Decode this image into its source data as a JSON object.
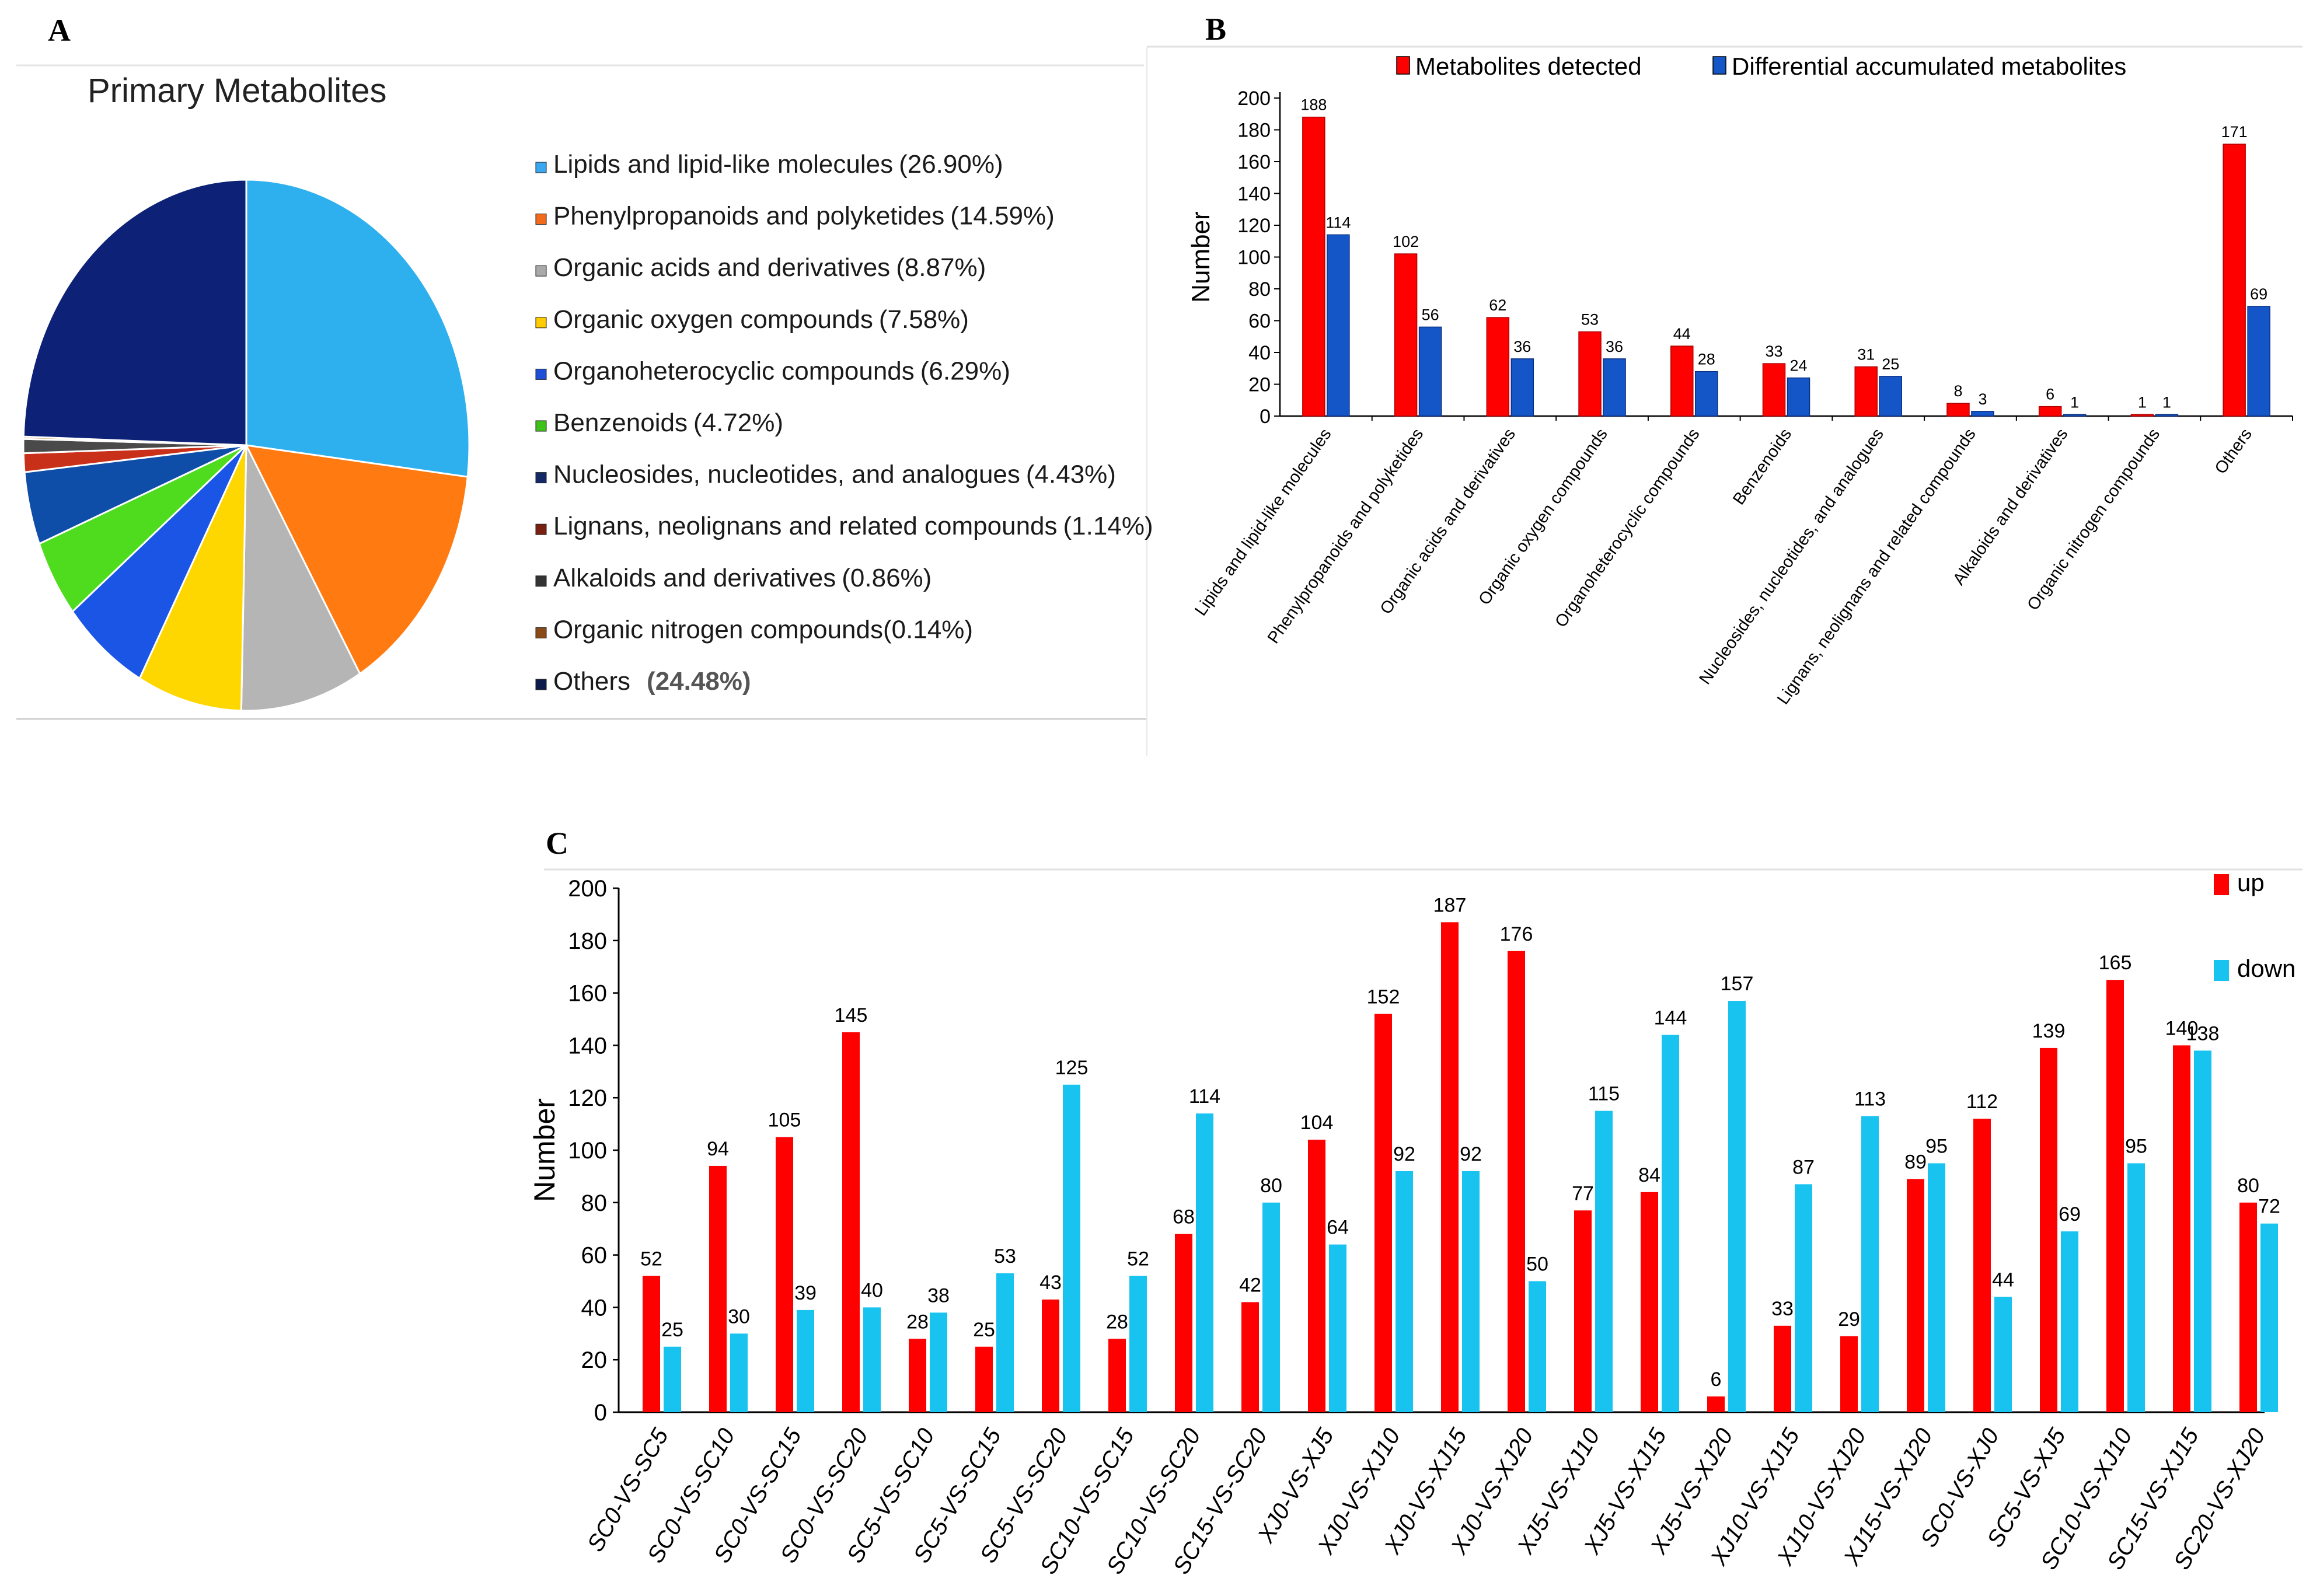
{
  "panels": {
    "a": {
      "letter": "A"
    },
    "b": {
      "letter": "B"
    },
    "c": {
      "letter": "C"
    }
  },
  "colors": {
    "red": "#ff0000",
    "blue_b": "#1456c8",
    "cyan": "#19c3f0",
    "axis": "#000000"
  },
  "chart_data": [
    {
      "type": "pie",
      "title": "Primary Metabolites",
      "slices": [
        {
          "label": "Lipids and lipid-like molecules",
          "pct_text": "(26.90%)",
          "value": 26.9,
          "color": "#2eb0ee",
          "legend_color": "#3aa8f0"
        },
        {
          "label": "Phenylpropanoids and polyketides",
          "pct_text": "(14.59%)",
          "value": 14.59,
          "color": "#ff7a10",
          "legend_color": "#f26a1b"
        },
        {
          "label": "Organic acids and derivatives",
          "pct_text": "(8.87%)",
          "value": 8.87,
          "color": "#b5b5b5",
          "legend_color": "#a9a9a9"
        },
        {
          "label": "Organic oxygen compounds",
          "pct_text": "(7.58%)",
          "value": 7.58,
          "color": "#ffd700",
          "legend_color": "#ffcc00"
        },
        {
          "label": "Organoheterocyclic compounds",
          "pct_text": "(6.29%)",
          "value": 6.29,
          "color": "#1a55e6",
          "legend_color": "#1f4fd6"
        },
        {
          "label": "Benzenoids",
          "pct_text": "(4.72%)",
          "value": 4.72,
          "color": "#4fdc1e",
          "legend_color": "#3dc21a"
        },
        {
          "label": "Nucleosides, nucleotides, and analogues",
          "pct_text": "(4.43%)",
          "value": 4.43,
          "color": "#0e4ea8",
          "legend_color": "#142a66"
        },
        {
          "label": "Lignans, neolignans and related compounds",
          "pct_text": "(1.14%)",
          "value": 1.14,
          "color": "#c8301a",
          "legend_color": "#7a2010"
        },
        {
          "label": "Alkaloids and derivatives",
          "pct_text": "(0.86%)",
          "value": 0.86,
          "color": "#4a4a4a",
          "legend_color": "#333333"
        },
        {
          "label": "Organic nitrogen compounds",
          "pct_text": "(0.14%)",
          "value": 0.14,
          "color": "#c9a24a",
          "legend_color": "#8a4a18"
        },
        {
          "label": "Others",
          "pct_text": "(24.48%)",
          "value": 24.48,
          "color": "#0d2277",
          "legend_color": "#0d1a4a"
        }
      ]
    },
    {
      "type": "bar",
      "categories": [
        "Lipids and lipid-like molecules",
        "Phenylpropanoids and polyketides",
        "Organic acids and derivatives",
        "Organic oxygen compounds",
        "Organoheterocyclic compounds",
        "Benzenoids",
        "Nucleosides, nucleotides, and analogues",
        "Lignans, neolignans and related compounds",
        "Alkaloids and derivatives",
        "Organic nitrogen compounds",
        "Others"
      ],
      "series": [
        {
          "name": "Metabolites detected",
          "color": "#ff0000",
          "values": [
            188,
            102,
            62,
            53,
            44,
            33,
            31,
            8,
            6,
            1,
            171
          ]
        },
        {
          "name": "Differential accumulated metabolites",
          "color": "#1456c8",
          "values": [
            114,
            56,
            36,
            36,
            28,
            24,
            25,
            3,
            1,
            1,
            69
          ]
        }
      ],
      "ylabel": "Number",
      "ylim": [
        0,
        200
      ],
      "yticks": [
        0,
        20,
        40,
        60,
        80,
        100,
        120,
        140,
        160,
        180,
        200
      ],
      "legend": "top"
    },
    {
      "type": "bar",
      "categories": [
        "SC0-VS-SC5",
        "SC0-VS-SC10",
        "SC0-VS-SC15",
        "SC0-VS-SC20",
        "SC5-VS-SC10",
        "SC5-VS-SC15",
        "SC5-VS-SC20",
        "SC10-VS-SC15",
        "SC10-VS-SC20",
        "SC15-VS-SC20",
        "XJ0-VS-XJ5",
        "XJ0-VS-XJ10",
        "XJ0-VS-XJ15",
        "XJ0-VS-XJ20",
        "XJ5-VS-XJ10",
        "XJ5-VS-XJ15",
        "XJ5-VS-XJ20",
        "XJ10-VS-XJ15",
        "XJ10-VS-XJ20",
        "XJ15-VS-XJ20",
        "SC0-VS-XJ0",
        "SC5-VS-XJ5",
        "SC10-VS-XJ10",
        "SC15-VS-XJ15",
        "SC20-VS-XJ20"
      ],
      "series": [
        {
          "name": "up",
          "color": "#ff0000",
          "values": [
            52,
            94,
            105,
            145,
            28,
            25,
            43,
            28,
            68,
            42,
            104,
            152,
            187,
            176,
            77,
            84,
            6,
            33,
            29,
            89,
            112,
            139,
            165,
            140,
            80
          ]
        },
        {
          "name": "down",
          "color": "#19c3f0",
          "values": [
            25,
            30,
            39,
            40,
            38,
            53,
            125,
            52,
            114,
            80,
            64,
            92,
            92,
            50,
            115,
            144,
            157,
            87,
            113,
            95,
            44,
            69,
            95,
            138,
            72
          ]
        }
      ],
      "ylabel": "Number",
      "ylim": [
        0,
        200
      ],
      "yticks": [
        0,
        20,
        40,
        60,
        80,
        100,
        120,
        140,
        160,
        180,
        200
      ],
      "legend": "top-right"
    }
  ]
}
